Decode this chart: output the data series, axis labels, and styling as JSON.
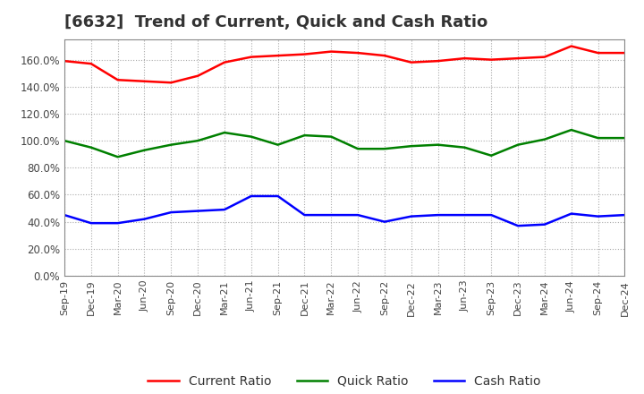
{
  "title": "[6632]  Trend of Current, Quick and Cash Ratio",
  "x_labels": [
    "Sep-19",
    "Dec-19",
    "Mar-20",
    "Jun-20",
    "Sep-20",
    "Dec-20",
    "Mar-21",
    "Jun-21",
    "Sep-21",
    "Dec-21",
    "Mar-22",
    "Jun-22",
    "Sep-22",
    "Dec-22",
    "Mar-23",
    "Jun-23",
    "Sep-23",
    "Dec-23",
    "Mar-24",
    "Jun-24",
    "Sep-24",
    "Dec-24"
  ],
  "current_ratio": [
    159,
    157,
    145,
    144,
    143,
    148,
    158,
    162,
    163,
    164,
    166,
    165,
    163,
    158,
    159,
    161,
    160,
    161,
    162,
    170,
    165,
    165
  ],
  "quick_ratio": [
    100,
    95,
    88,
    93,
    97,
    100,
    106,
    103,
    97,
    104,
    103,
    94,
    94,
    96,
    97,
    95,
    89,
    97,
    101,
    108,
    102,
    102
  ],
  "cash_ratio": [
    45,
    39,
    39,
    42,
    47,
    48,
    49,
    59,
    59,
    45,
    45,
    45,
    40,
    44,
    45,
    45,
    45,
    37,
    38,
    46,
    44,
    45
  ],
  "current_color": "#ff0000",
  "quick_color": "#008000",
  "cash_color": "#0000ff",
  "ylim": [
    0,
    175
  ],
  "yticks": [
    0,
    20,
    40,
    60,
    80,
    100,
    120,
    140,
    160
  ],
  "background_color": "#ffffff",
  "grid_color": "#aaaaaa",
  "title_fontsize": 13,
  "legend_fontsize": 10
}
